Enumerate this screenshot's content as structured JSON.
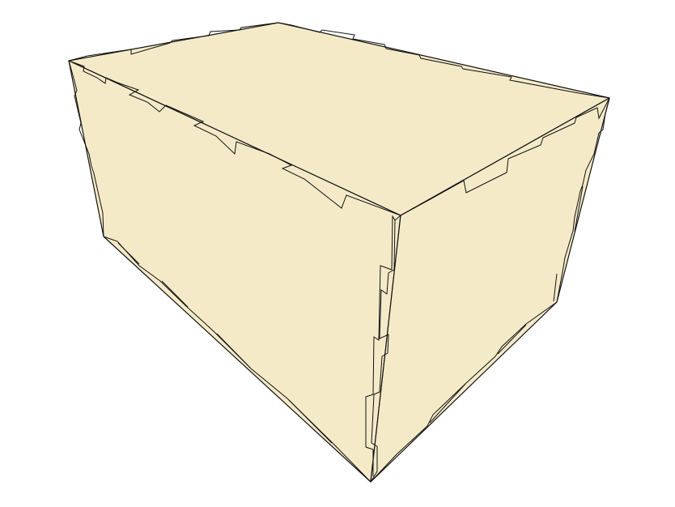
{
  "render": {
    "background": "#ffffff",
    "panel_fill": "#f5eac8",
    "edge_color": "#111111"
  },
  "model": {
    "object": "box-with-finger-joints",
    "panels": [
      "top-panel",
      "front-panel",
      "side-panel"
    ]
  }
}
